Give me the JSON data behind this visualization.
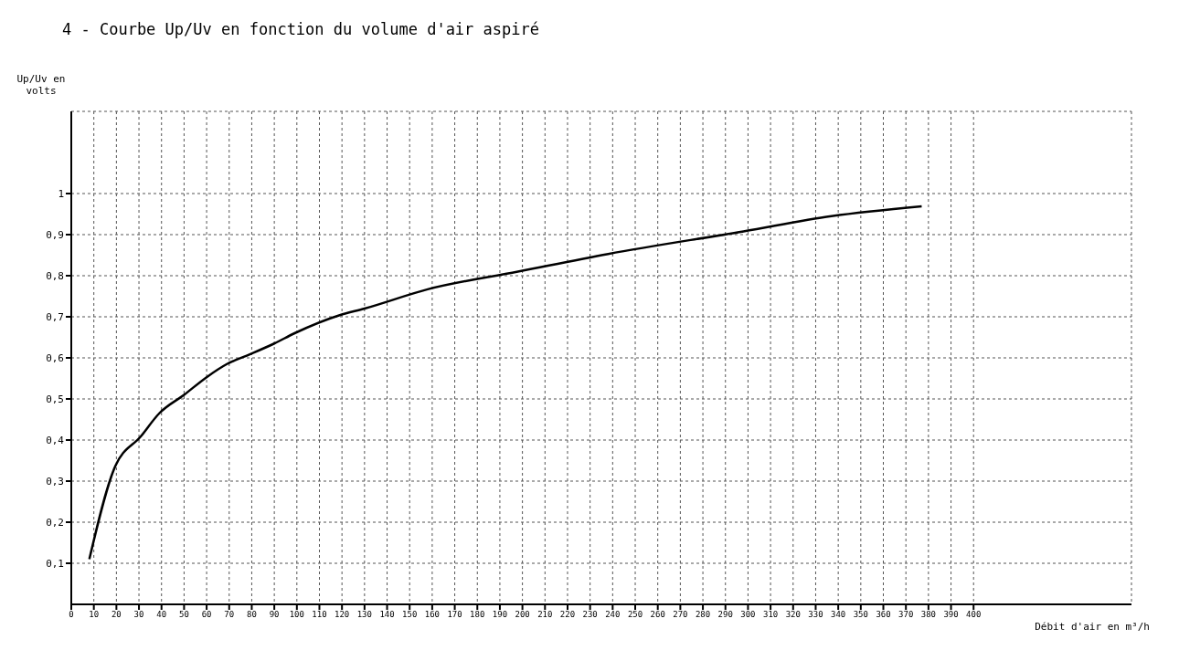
{
  "chart_data": {
    "type": "line",
    "title": "4 - Courbe Up/Uv en fonction du volume d'air aspiré",
    "xlabel": "Débit d'air en m³/h",
    "ylabel": "Up/Uv en volts",
    "x": [
      8,
      19,
      31,
      39,
      50,
      60,
      69,
      78,
      90,
      99,
      119,
      130,
      158,
      198,
      238,
      298,
      337,
      377
    ],
    "series": [
      {
        "color": "#000000",
        "values": [
          0.11,
          0.33,
          0.41,
          0.465,
          0.51,
          0.553,
          0.585,
          0.606,
          0.635,
          0.66,
          0.704,
          0.72,
          0.767,
          0.81,
          0.853,
          0.908,
          0.945,
          0.969
        ]
      }
    ],
    "xlim": [
      0,
      470
    ],
    "xticks": [
      0,
      10,
      20,
      30,
      40,
      50,
      60,
      70,
      80,
      90,
      100,
      110,
      120,
      130,
      140,
      150,
      160,
      170,
      180,
      190,
      200,
      210,
      220,
      230,
      240,
      250,
      260,
      270,
      280,
      290,
      300,
      310,
      320,
      330,
      340,
      350,
      360,
      370,
      380,
      390,
      400
    ],
    "ylim": [
      0,
      1.2
    ],
    "yticks": [
      {
        "value": 0.1,
        "label": "0,1"
      },
      {
        "value": 0.2,
        "label": "0,2"
      },
      {
        "value": 0.3,
        "label": "0,3"
      },
      {
        "value": 0.4,
        "label": "0,4"
      },
      {
        "value": 0.5,
        "label": "0,5"
      },
      {
        "value": 0.6,
        "label": "0,6"
      },
      {
        "value": 0.7,
        "label": "0,7"
      },
      {
        "value": 0.8,
        "label": "0,8"
      },
      {
        "value": 0.9,
        "label": "0,9"
      },
      {
        "value": 1,
        "label": "1"
      }
    ],
    "grid": true,
    "marker": "none",
    "line_style": "solid"
  }
}
